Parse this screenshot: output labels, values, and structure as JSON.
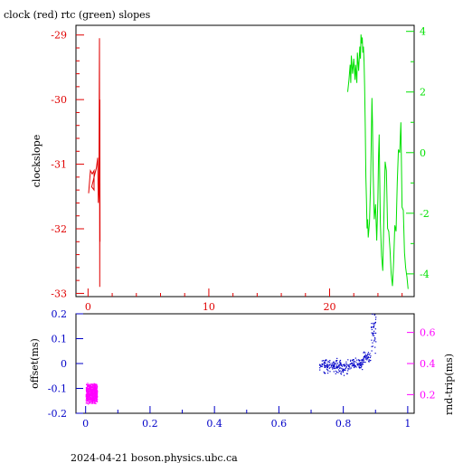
{
  "title": "clock (red) rtc (green) slopes",
  "footer": "2024-04-21 boson.physics.ubc.ca",
  "colors": {
    "red": "#e00000",
    "green": "#00e000",
    "blue": "#0000c8",
    "magenta": "#ff00ff",
    "axis": "#000000"
  },
  "chart_data": [
    {
      "type": "line",
      "ylabel": "clockslope",
      "x_axis": {
        "range": [
          -1,
          27
        ],
        "ticks": [
          "0",
          "10",
          "20"
        ],
        "tick_values": [
          0,
          10,
          20
        ],
        "color": "red"
      },
      "y_left": {
        "range": [
          -33.05,
          -28.85
        ],
        "ticks": [
          "-33",
          "-32",
          "-31",
          "-30",
          "-29"
        ],
        "tick_values": [
          -33,
          -32,
          -31,
          -30,
          -29
        ],
        "color": "red"
      },
      "y_right": {
        "range": [
          -4.75,
          4.2
        ],
        "ticks": [
          "-4",
          "-2",
          "0",
          "2",
          "4"
        ],
        "tick_values": [
          -4,
          -2,
          0,
          2,
          4
        ],
        "color": "green"
      },
      "series": [
        {
          "color": "red",
          "axis": "left",
          "points": [
            [
              0.05,
              -31.45
            ],
            [
              0.2,
              -31.1
            ],
            [
              0.35,
              -31.15
            ],
            [
              0.5,
              -31.1
            ],
            [
              0.5,
              -31.4
            ],
            [
              0.3,
              -31.35
            ],
            [
              0.7,
              -31.05
            ],
            [
              0.8,
              -30.9
            ],
            [
              0.85,
              -31.6
            ],
            [
              0.9,
              -31.3
            ],
            [
              0.95,
              -29.05
            ],
            [
              0.97,
              -32.9
            ],
            [
              0.98,
              -30.0
            ],
            [
              0.99,
              -32.2
            ],
            [
              0.95,
              -31.4
            ],
            [
              0.9,
              -31.25
            ]
          ]
        },
        {
          "color": "green",
          "axis": "right",
          "points": [
            [
              21.5,
              2.0
            ],
            [
              21.6,
              2.4
            ],
            [
              21.7,
              2.9
            ],
            [
              21.75,
              2.3
            ],
            [
              21.8,
              3.2
            ],
            [
              21.9,
              2.6
            ],
            [
              22.0,
              3.1
            ],
            [
              22.1,
              2.4
            ],
            [
              22.15,
              2.9
            ],
            [
              22.25,
              2.3
            ],
            [
              22.3,
              3.3
            ],
            [
              22.4,
              2.7
            ],
            [
              22.5,
              3.5
            ],
            [
              22.55,
              3.1
            ],
            [
              22.6,
              3.9
            ],
            [
              22.65,
              3.6
            ],
            [
              22.7,
              3.8
            ],
            [
              22.75,
              3.3
            ],
            [
              22.8,
              3.5
            ],
            [
              22.85,
              3.0
            ],
            [
              22.9,
              2.2
            ],
            [
              22.95,
              0.9
            ],
            [
              23.0,
              -0.8
            ],
            [
              23.05,
              -1.5
            ],
            [
              23.1,
              -2.5
            ],
            [
              23.15,
              -2.2
            ],
            [
              23.2,
              -2.8
            ],
            [
              23.3,
              -2.3
            ],
            [
              23.4,
              -0.9
            ],
            [
              23.5,
              1.8
            ],
            [
              23.55,
              1.0
            ],
            [
              23.6,
              -0.6
            ],
            [
              23.7,
              -2.2
            ],
            [
              23.8,
              -1.7
            ],
            [
              23.9,
              -2.9
            ],
            [
              24.0,
              -1.5
            ],
            [
              24.05,
              -0.1
            ],
            [
              24.1,
              0.6
            ],
            [
              24.15,
              -0.8
            ],
            [
              24.2,
              -2.3
            ],
            [
              24.3,
              -3.4
            ],
            [
              24.4,
              -3.9
            ],
            [
              24.5,
              -2.0
            ],
            [
              24.6,
              -0.3
            ],
            [
              24.7,
              -0.6
            ],
            [
              24.8,
              -2.5
            ],
            [
              24.9,
              -2.6
            ],
            [
              25.0,
              -3.2
            ],
            [
              25.1,
              -4.0
            ],
            [
              25.2,
              -4.4
            ],
            [
              25.3,
              -3.6
            ],
            [
              25.4,
              -2.4
            ],
            [
              25.5,
              -2.6
            ],
            [
              25.6,
              -1.0
            ],
            [
              25.7,
              0.1
            ],
            [
              25.8,
              0.0
            ],
            [
              25.9,
              1.0
            ],
            [
              26.0,
              -1.8
            ],
            [
              26.1,
              -1.9
            ],
            [
              26.2,
              -3.3
            ],
            [
              26.3,
              -3.8
            ],
            [
              26.4,
              -4.1
            ],
            [
              26.5,
              -4.5
            ]
          ]
        }
      ]
    },
    {
      "type": "scatter",
      "ylabel": "offset(ms)",
      "y2label": "rnd-trip(ms)",
      "x_axis": {
        "range": [
          -0.03,
          1.02
        ],
        "ticks": [
          "0",
          "0.2",
          "0.4",
          "0.6",
          "0.8",
          "1"
        ],
        "tick_values": [
          0,
          0.2,
          0.4,
          0.6,
          0.8,
          1
        ],
        "color": "blue"
      },
      "y_left": {
        "range": [
          -0.2,
          0.2
        ],
        "ticks": [
          "-0.2",
          "-0.1",
          "0",
          "0.1",
          "0.2"
        ],
        "tick_values": [
          -0.2,
          -0.1,
          0,
          0.1,
          0.2
        ],
        "color": "blue"
      },
      "y_right": {
        "range": [
          0.08,
          0.72
        ],
        "ticks": [
          "0.2",
          "0.4",
          "0.6"
        ],
        "tick_values": [
          0.2,
          0.4,
          0.6
        ],
        "color": "magenta"
      },
      "series": [
        {
          "color": "blue",
          "axis": "left",
          "clusters": [
            {
              "x": [
                0.725,
                0.79
              ],
              "y": [
                -0.025,
                0.01
              ],
              "n": 120,
              "spread": 0.02
            },
            {
              "x": [
                0.79,
                0.815
              ],
              "y": [
                -0.03,
                0.0
              ],
              "n": 40,
              "spread": 0.02
            },
            {
              "x": [
                0.815,
                0.86
              ],
              "y": [
                -0.01,
                0.01
              ],
              "n": 80,
              "spread": 0.015
            },
            {
              "x": [
                0.86,
                0.885
              ],
              "y": [
                0.02,
                0.04
              ],
              "n": 40,
              "spread": 0.015
            },
            {
              "x": [
                0.885,
                0.9
              ],
              "y": [
                0.06,
                0.19
              ],
              "n": 40,
              "spread": 0.02
            }
          ]
        },
        {
          "color": "magenta",
          "axis": "right",
          "clusters": [
            {
              "x": [
                0.0,
                0.035
              ],
              "y": [
                0.16,
                0.26
              ],
              "n": 600,
              "spread": 0.02
            }
          ]
        }
      ]
    }
  ]
}
